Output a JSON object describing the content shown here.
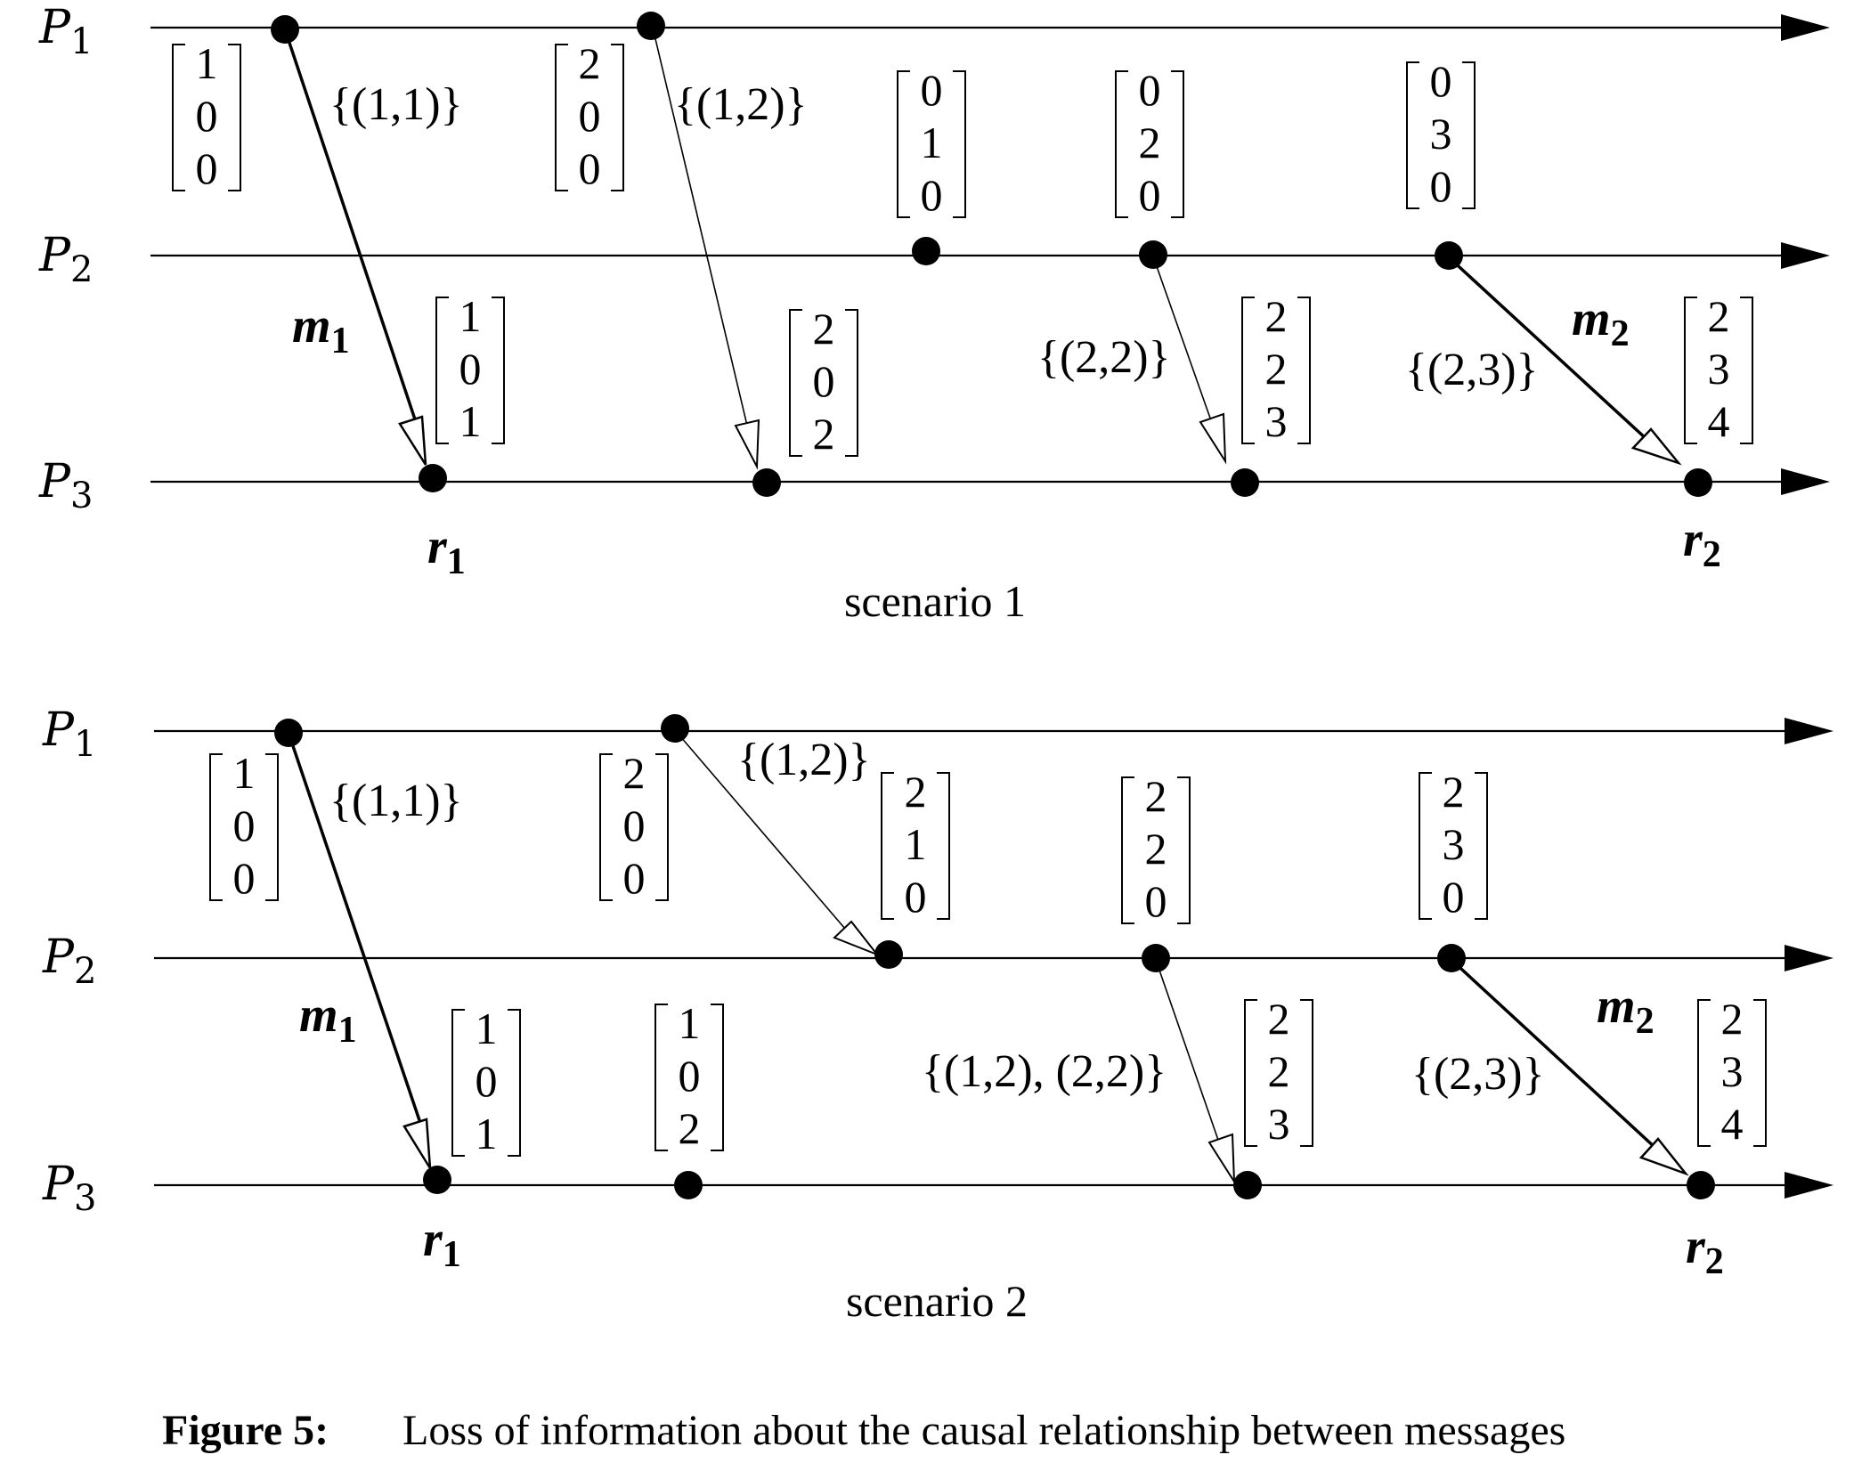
{
  "figure": {
    "caption_label": "Figure 5:",
    "caption_text": "Loss of information about the causal relationship between messages"
  },
  "processes": [
    {
      "name": "P",
      "sub": "1"
    },
    {
      "name": "P",
      "sub": "2"
    },
    {
      "name": "P",
      "sub": "3"
    }
  ],
  "scenarios": [
    {
      "label": "scenario 1",
      "vectors": [
        {
          "values": [
            "1",
            "0",
            "0"
          ]
        },
        {
          "values": [
            "2",
            "0",
            "0"
          ]
        },
        {
          "values": [
            "0",
            "1",
            "0"
          ]
        },
        {
          "values": [
            "0",
            "2",
            "0"
          ]
        },
        {
          "values": [
            "0",
            "3",
            "0"
          ]
        },
        {
          "values": [
            "1",
            "0",
            "1"
          ]
        },
        {
          "values": [
            "2",
            "0",
            "2"
          ]
        },
        {
          "values": [
            "2",
            "2",
            "3"
          ]
        },
        {
          "values": [
            "2",
            "3",
            "4"
          ]
        }
      ],
      "sets": [
        "{(1,1)}",
        "{(1,2)}",
        "{(2,2)}",
        "{(2,3)}"
      ],
      "message_labels": [
        {
          "name": "m",
          "sub": "1"
        },
        {
          "name": "m",
          "sub": "2"
        },
        {
          "name": "r",
          "sub": "1"
        },
        {
          "name": "r",
          "sub": "2"
        }
      ]
    },
    {
      "label": "scenario 2",
      "vectors": [
        {
          "values": [
            "1",
            "0",
            "0"
          ]
        },
        {
          "values": [
            "2",
            "0",
            "0"
          ]
        },
        {
          "values": [
            "2",
            "1",
            "0"
          ]
        },
        {
          "values": [
            "2",
            "2",
            "0"
          ]
        },
        {
          "values": [
            "2",
            "3",
            "0"
          ]
        },
        {
          "values": [
            "1",
            "0",
            "1"
          ]
        },
        {
          "values": [
            "1",
            "0",
            "2"
          ]
        },
        {
          "values": [
            "2",
            "2",
            "3"
          ]
        },
        {
          "values": [
            "2",
            "3",
            "4"
          ]
        }
      ],
      "sets": [
        "{(1,1)}",
        "{(1,2)}",
        "{(1,2), (2,2)}",
        "{(2,3)}"
      ],
      "message_labels": [
        {
          "name": "m",
          "sub": "1"
        },
        {
          "name": "m",
          "sub": "2"
        },
        {
          "name": "r",
          "sub": "1"
        },
        {
          "name": "r",
          "sub": "2"
        }
      ]
    }
  ]
}
